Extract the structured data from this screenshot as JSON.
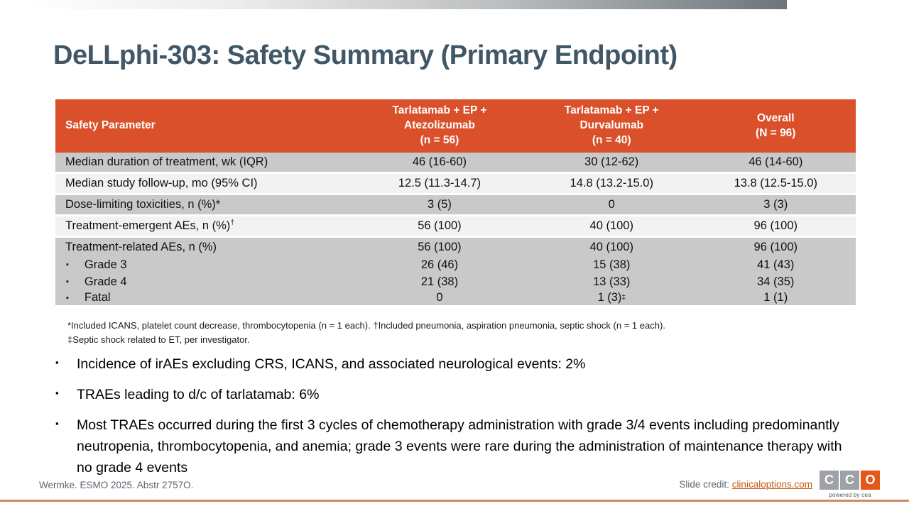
{
  "colors": {
    "header-bg": "#D9502A",
    "row-dark": "#C9C9C9",
    "row-light": "#F2F2F2",
    "title": "#3F5766",
    "footer-text": "#5B6670",
    "link": "#C45911",
    "bottom-line": "#CE8A66",
    "logo-gray": "#9EA2A6",
    "logo-orange": "#E4581B"
  },
  "title": "DeLLphi-303: Safety Summary (Primary Endpoint)",
  "table": {
    "headers": [
      "Safety Parameter",
      "Tarlatamab + EP +\nAtezolizumab\n(n = 56)",
      "Tarlatamab + EP +\nDurvalumab\n(n = 40)",
      "Overall\n(N = 96)"
    ],
    "rows": [
      {
        "label": "Median duration of treatment, wk (IQR)",
        "values": [
          "46 (16-60)",
          "30 (12-62)",
          "46 (14-60)"
        ],
        "shade": "dark",
        "sep": true,
        "bullet": false
      },
      {
        "label": "Median study follow-up, mo (95% CI)",
        "values": [
          "12.5 (11.3-14.7)",
          "14.8 (13.2-15.0)",
          "13.8 (12.5-15.0)"
        ],
        "shade": "light",
        "sep": true,
        "bullet": false
      },
      {
        "label": "Dose-limiting toxicities, n (%)*",
        "values": [
          "3 (5)",
          "0",
          "3 (3)"
        ],
        "shade": "dark",
        "sep": true,
        "bullet": false
      },
      {
        "label": "Treatment-emergent AEs, n (%)†",
        "values": [
          "56 (100)",
          "40 (100)",
          "96 (100)"
        ],
        "shade": "light",
        "sep": true,
        "bullet": false
      },
      {
        "label": "Treatment-related AEs, n (%)",
        "values": [
          "56 (100)",
          "40 (100)",
          "96 (100)"
        ],
        "shade": "dark",
        "sep": false,
        "bullet": false
      },
      {
        "label": "Grade 3",
        "values": [
          "26 (46)",
          "15 (38)",
          "41 (43)"
        ],
        "shade": "dark",
        "sep": false,
        "bullet": true
      },
      {
        "label": "Grade 4",
        "values": [
          "21 (38)",
          "13 (33)",
          "34 (35)"
        ],
        "shade": "dark",
        "sep": false,
        "bullet": true
      },
      {
        "label": "Fatal",
        "values": [
          "0",
          "1 (3)‡",
          "1 (1)"
        ],
        "shade": "dark",
        "sep": true,
        "bullet": true
      }
    ]
  },
  "footnotes": [
    "*Included ICANS, platelet count decrease, thrombocytopenia (n = 1 each). †Included pneumonia, aspiration pneumonia, septic shock (n = 1 each).",
    "‡Septic shock related to ET, per investigator."
  ],
  "bullets": [
    "Incidence of irAEs excluding CRS, ICANS, and associated neurological events: 2%",
    "TRAEs leading to d/c of tarlatamab: 6%",
    "Most TRAEs occurred during the first 3 cycles of chemotherapy administration with grade 3/4 events including predominantly neutropenia, thrombocytopenia, and anemia; grade 3 events were rare during the administration of maintenance therapy with no grade 4 events"
  ],
  "footer": {
    "reference": "Wermke. ESMO 2025. Abstr 2757O.",
    "credit_label": "Slide credit:",
    "credit_link": "clinicaloptions.com",
    "logo_letters": [
      "C",
      "C",
      "O"
    ],
    "logo_tagline": "powered by cea"
  }
}
